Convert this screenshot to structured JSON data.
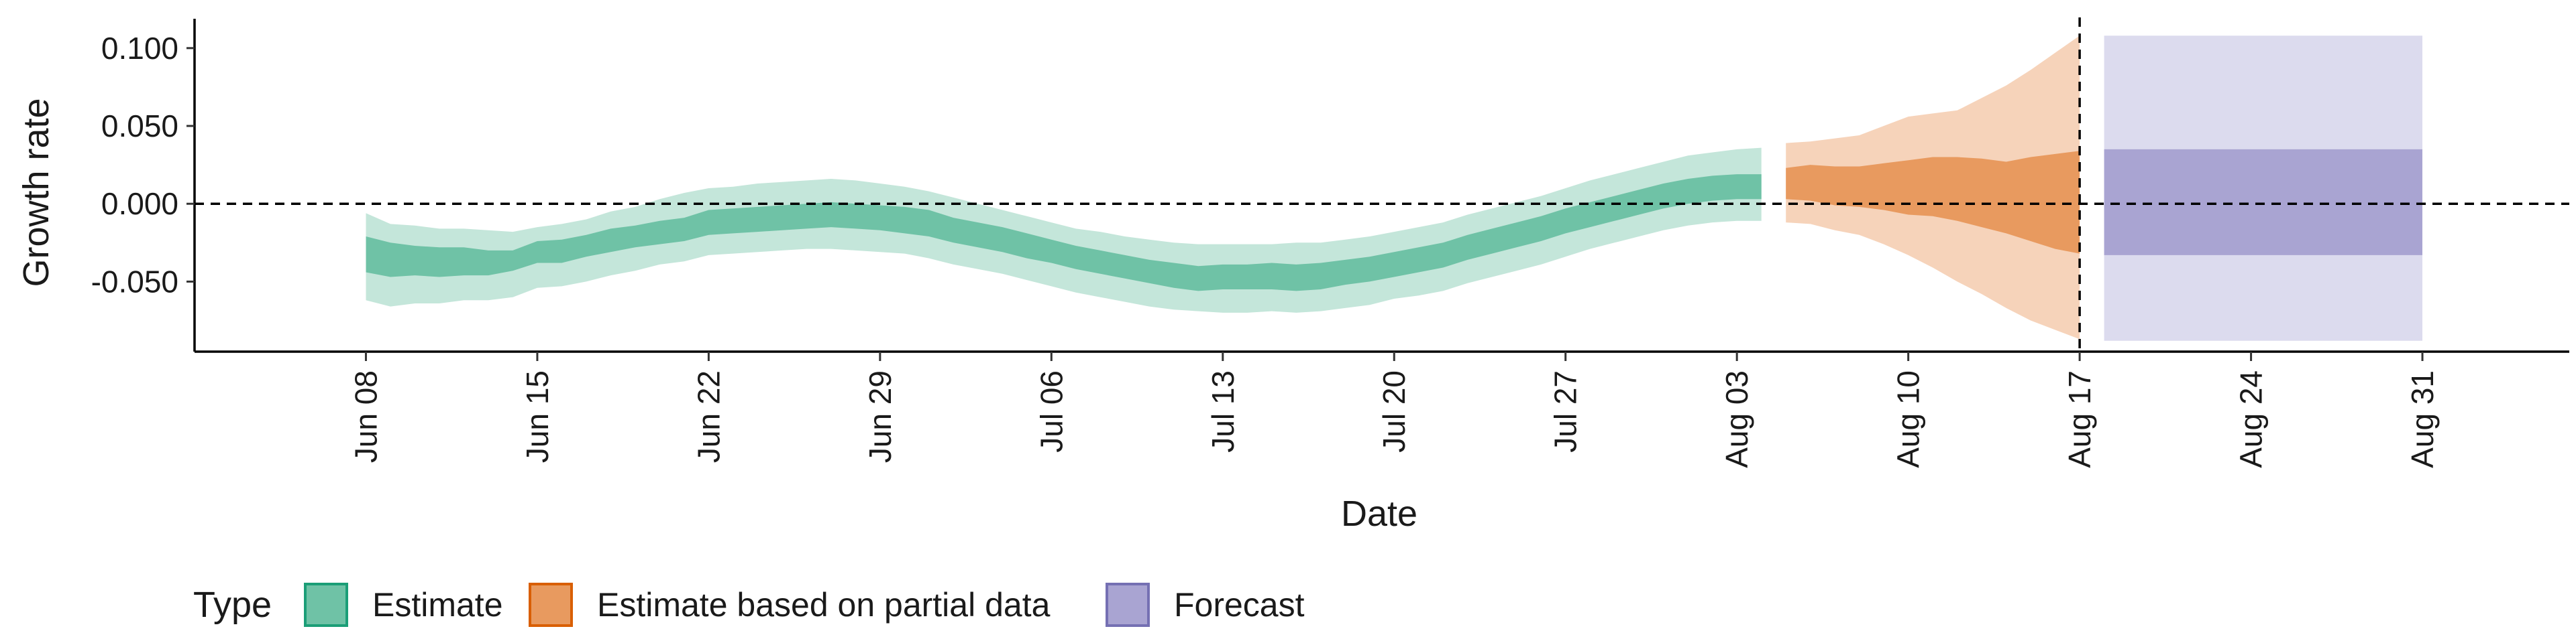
{
  "chart_data": {
    "type": "area",
    "xlabel": "Date",
    "ylabel": "Growth rate",
    "ylim": [
      -0.095,
      0.118
    ],
    "y_ticks": [
      -0.05,
      0.0,
      0.05,
      0.1
    ],
    "y_tick_labels": [
      "-0.050",
      "0.000",
      "0.050",
      "0.100"
    ],
    "x_range": [
      "2020-06-01",
      "2020-09-06"
    ],
    "x_ticks": [
      "2020-06-08",
      "2020-06-15",
      "2020-06-22",
      "2020-06-29",
      "2020-07-06",
      "2020-07-13",
      "2020-07-20",
      "2020-07-27",
      "2020-08-03",
      "2020-08-10",
      "2020-08-17",
      "2020-08-24",
      "2020-08-31"
    ],
    "x_tick_labels": [
      "Jun 08",
      "Jun 15",
      "Jun 22",
      "Jun 29",
      "Jul 06",
      "Jul 13",
      "Jul 20",
      "Jul 27",
      "Aug 03",
      "Aug 10",
      "Aug 17",
      "Aug 24",
      "Aug 31"
    ],
    "reference_lines": {
      "horizontal_y": 0.0,
      "vertical_date": "2020-08-17"
    },
    "grid": false,
    "legend": {
      "title": "Type",
      "position": "bottom-left",
      "entries": [
        {
          "label": "Estimate",
          "fill": "#6fc2a6",
          "border": "#1b9e77"
        },
        {
          "label": "Estimate based on partial data",
          "fill": "#e89a5f",
          "border": "#d95f02"
        },
        {
          "label": "Forecast",
          "fill": "#a9a4d2",
          "border": "#7570b3"
        }
      ]
    },
    "series": [
      {
        "name": "Estimate",
        "color_outer": "#c4e6da",
        "color_inner": "#6fc2a6",
        "points": [
          {
            "date": "2020-06-08",
            "outer": [
              -0.062,
              -0.006
            ],
            "inner": [
              -0.044,
              -0.021
            ]
          },
          {
            "date": "2020-06-09",
            "outer": [
              -0.066,
              -0.013
            ],
            "inner": [
              -0.047,
              -0.025
            ]
          },
          {
            "date": "2020-06-10",
            "outer": [
              -0.064,
              -0.014
            ],
            "inner": [
              -0.046,
              -0.027
            ]
          },
          {
            "date": "2020-06-11",
            "outer": [
              -0.064,
              -0.016
            ],
            "inner": [
              -0.047,
              -0.028
            ]
          },
          {
            "date": "2020-06-12",
            "outer": [
              -0.062,
              -0.016
            ],
            "inner": [
              -0.046,
              -0.028
            ]
          },
          {
            "date": "2020-06-13",
            "outer": [
              -0.062,
              -0.017
            ],
            "inner": [
              -0.046,
              -0.03
            ]
          },
          {
            "date": "2020-06-14",
            "outer": [
              -0.06,
              -0.018
            ],
            "inner": [
              -0.043,
              -0.03
            ]
          },
          {
            "date": "2020-06-15",
            "outer": [
              -0.054,
              -0.015
            ],
            "inner": [
              -0.038,
              -0.024
            ]
          },
          {
            "date": "2020-06-16",
            "outer": [
              -0.053,
              -0.013
            ],
            "inner": [
              -0.038,
              -0.023
            ]
          },
          {
            "date": "2020-06-17",
            "outer": [
              -0.05,
              -0.01
            ],
            "inner": [
              -0.034,
              -0.02
            ]
          },
          {
            "date": "2020-06-18",
            "outer": [
              -0.046,
              -0.005
            ],
            "inner": [
              -0.031,
              -0.016
            ]
          },
          {
            "date": "2020-06-19",
            "outer": [
              -0.043,
              -0.002
            ],
            "inner": [
              -0.028,
              -0.014
            ]
          },
          {
            "date": "2020-06-20",
            "outer": [
              -0.039,
              0.003
            ],
            "inner": [
              -0.026,
              -0.011
            ]
          },
          {
            "date": "2020-06-21",
            "outer": [
              -0.037,
              0.007
            ],
            "inner": [
              -0.024,
              -0.009
            ]
          },
          {
            "date": "2020-06-22",
            "outer": [
              -0.033,
              0.01
            ],
            "inner": [
              -0.02,
              -0.004
            ]
          },
          {
            "date": "2020-06-23",
            "outer": [
              -0.032,
              0.011
            ],
            "inner": [
              -0.019,
              -0.003
            ]
          },
          {
            "date": "2020-06-24",
            "outer": [
              -0.031,
              0.013
            ],
            "inner": [
              -0.018,
              -0.002
            ]
          },
          {
            "date": "2020-06-25",
            "outer": [
              -0.03,
              0.014
            ],
            "inner": [
              -0.017,
              -0.001
            ]
          },
          {
            "date": "2020-06-26",
            "outer": [
              -0.029,
              0.015
            ],
            "inner": [
              -0.016,
              0.0
            ]
          },
          {
            "date": "2020-06-27",
            "outer": [
              -0.029,
              0.016
            ],
            "inner": [
              -0.015,
              0.001
            ]
          },
          {
            "date": "2020-06-28",
            "outer": [
              -0.03,
              0.015
            ],
            "inner": [
              -0.016,
              0.0
            ]
          },
          {
            "date": "2020-06-29",
            "outer": [
              -0.031,
              0.013
            ],
            "inner": [
              -0.017,
              -0.001
            ]
          },
          {
            "date": "2020-06-30",
            "outer": [
              -0.032,
              0.011
            ],
            "inner": [
              -0.019,
              -0.002
            ]
          },
          {
            "date": "2020-07-01",
            "outer": [
              -0.035,
              0.008
            ],
            "inner": [
              -0.021,
              -0.004
            ]
          },
          {
            "date": "2020-07-02",
            "outer": [
              -0.039,
              0.004
            ],
            "inner": [
              -0.025,
              -0.009
            ]
          },
          {
            "date": "2020-07-03",
            "outer": [
              -0.042,
              0.0
            ],
            "inner": [
              -0.028,
              -0.012
            ]
          },
          {
            "date": "2020-07-04",
            "outer": [
              -0.045,
              -0.004
            ],
            "inner": [
              -0.031,
              -0.015
            ]
          },
          {
            "date": "2020-07-05",
            "outer": [
              -0.049,
              -0.008
            ],
            "inner": [
              -0.035,
              -0.019
            ]
          },
          {
            "date": "2020-07-06",
            "outer": [
              -0.053,
              -0.012
            ],
            "inner": [
              -0.038,
              -0.023
            ]
          },
          {
            "date": "2020-07-07",
            "outer": [
              -0.057,
              -0.016
            ],
            "inner": [
              -0.042,
              -0.027
            ]
          },
          {
            "date": "2020-07-08",
            "outer": [
              -0.06,
              -0.018
            ],
            "inner": [
              -0.045,
              -0.03
            ]
          },
          {
            "date": "2020-07-09",
            "outer": [
              -0.063,
              -0.021
            ],
            "inner": [
              -0.048,
              -0.033
            ]
          },
          {
            "date": "2020-07-10",
            "outer": [
              -0.066,
              -0.023
            ],
            "inner": [
              -0.051,
              -0.036
            ]
          },
          {
            "date": "2020-07-11",
            "outer": [
              -0.068,
              -0.025
            ],
            "inner": [
              -0.054,
              -0.038
            ]
          },
          {
            "date": "2020-07-12",
            "outer": [
              -0.069,
              -0.026
            ],
            "inner": [
              -0.056,
              -0.04
            ]
          },
          {
            "date": "2020-07-13",
            "outer": [
              -0.07,
              -0.026
            ],
            "inner": [
              -0.055,
              -0.039
            ]
          },
          {
            "date": "2020-07-14",
            "outer": [
              -0.07,
              -0.026
            ],
            "inner": [
              -0.055,
              -0.039
            ]
          },
          {
            "date": "2020-07-15",
            "outer": [
              -0.069,
              -0.026
            ],
            "inner": [
              -0.055,
              -0.038
            ]
          },
          {
            "date": "2020-07-16",
            "outer": [
              -0.07,
              -0.025
            ],
            "inner": [
              -0.056,
              -0.039
            ]
          },
          {
            "date": "2020-07-17",
            "outer": [
              -0.069,
              -0.025
            ],
            "inner": [
              -0.055,
              -0.038
            ]
          },
          {
            "date": "2020-07-18",
            "outer": [
              -0.067,
              -0.023
            ],
            "inner": [
              -0.052,
              -0.036
            ]
          },
          {
            "date": "2020-07-19",
            "outer": [
              -0.065,
              -0.021
            ],
            "inner": [
              -0.05,
              -0.034
            ]
          },
          {
            "date": "2020-07-20",
            "outer": [
              -0.061,
              -0.018
            ],
            "inner": [
              -0.047,
              -0.031
            ]
          },
          {
            "date": "2020-07-21",
            "outer": [
              -0.059,
              -0.015
            ],
            "inner": [
              -0.044,
              -0.028
            ]
          },
          {
            "date": "2020-07-22",
            "outer": [
              -0.056,
              -0.012
            ],
            "inner": [
              -0.041,
              -0.025
            ]
          },
          {
            "date": "2020-07-23",
            "outer": [
              -0.051,
              -0.007
            ],
            "inner": [
              -0.036,
              -0.02
            ]
          },
          {
            "date": "2020-07-24",
            "outer": [
              -0.047,
              -0.003
            ],
            "inner": [
              -0.032,
              -0.016
            ]
          },
          {
            "date": "2020-07-25",
            "outer": [
              -0.043,
              0.001
            ],
            "inner": [
              -0.028,
              -0.012
            ]
          },
          {
            "date": "2020-07-26",
            "outer": [
              -0.039,
              0.005
            ],
            "inner": [
              -0.024,
              -0.008
            ]
          },
          {
            "date": "2020-07-27",
            "outer": [
              -0.034,
              0.01
            ],
            "inner": [
              -0.019,
              -0.003
            ]
          },
          {
            "date": "2020-07-28",
            "outer": [
              -0.029,
              0.015
            ],
            "inner": [
              -0.015,
              0.001
            ]
          },
          {
            "date": "2020-07-29",
            "outer": [
              -0.025,
              0.019
            ],
            "inner": [
              -0.011,
              0.005
            ]
          },
          {
            "date": "2020-07-30",
            "outer": [
              -0.021,
              0.023
            ],
            "inner": [
              -0.007,
              0.009
            ]
          },
          {
            "date": "2020-07-31",
            "outer": [
              -0.017,
              0.027
            ],
            "inner": [
              -0.003,
              0.013
            ]
          },
          {
            "date": "2020-08-01",
            "outer": [
              -0.014,
              0.031
            ],
            "inner": [
              0.0,
              0.016
            ]
          },
          {
            "date": "2020-08-02",
            "outer": [
              -0.012,
              0.033
            ],
            "inner": [
              0.002,
              0.018
            ]
          },
          {
            "date": "2020-08-03",
            "outer": [
              -0.011,
              0.035
            ],
            "inner": [
              0.003,
              0.019
            ]
          },
          {
            "date": "2020-08-04",
            "outer": [
              -0.011,
              0.036
            ],
            "inner": [
              0.003,
              0.019
            ]
          }
        ]
      },
      {
        "name": "Estimate based on partial data",
        "color_outer": "#f6d3ba",
        "color_inner": "#e89a5f",
        "points": [
          {
            "date": "2020-08-05",
            "outer": [
              -0.012,
              0.039
            ],
            "inner": [
              0.003,
              0.023
            ]
          },
          {
            "date": "2020-08-06",
            "outer": [
              -0.013,
              0.04
            ],
            "inner": [
              0.002,
              0.025
            ]
          },
          {
            "date": "2020-08-07",
            "outer": [
              -0.017,
              0.042
            ],
            "inner": [
              -0.001,
              0.024
            ]
          },
          {
            "date": "2020-08-08",
            "outer": [
              -0.02,
              0.044
            ],
            "inner": [
              -0.002,
              0.024
            ]
          },
          {
            "date": "2020-08-09",
            "outer": [
              -0.026,
              0.05
            ],
            "inner": [
              -0.004,
              0.026
            ]
          },
          {
            "date": "2020-08-10",
            "outer": [
              -0.033,
              0.056
            ],
            "inner": [
              -0.007,
              0.028
            ]
          },
          {
            "date": "2020-08-11",
            "outer": [
              -0.041,
              0.058
            ],
            "inner": [
              -0.008,
              0.03
            ]
          },
          {
            "date": "2020-08-12",
            "outer": [
              -0.05,
              0.06
            ],
            "inner": [
              -0.011,
              0.03
            ]
          },
          {
            "date": "2020-08-13",
            "outer": [
              -0.058,
              0.068
            ],
            "inner": [
              -0.015,
              0.029
            ]
          },
          {
            "date": "2020-08-14",
            "outer": [
              -0.067,
              0.076
            ],
            "inner": [
              -0.019,
              0.027
            ]
          },
          {
            "date": "2020-08-15",
            "outer": [
              -0.075,
              0.086
            ],
            "inner": [
              -0.024,
              0.03
            ]
          },
          {
            "date": "2020-08-16",
            "outer": [
              -0.081,
              0.097
            ],
            "inner": [
              -0.029,
              0.032
            ]
          },
          {
            "date": "2020-08-17",
            "outer": [
              -0.087,
              0.108
            ],
            "inner": [
              -0.032,
              0.034
            ]
          }
        ]
      },
      {
        "name": "Forecast",
        "color_outer": "#dcdbee",
        "color_inner": "#a9a4d2",
        "points": [
          {
            "date": "2020-08-18",
            "outer": [
              -0.088,
              0.108
            ],
            "inner": [
              -0.033,
              0.035
            ]
          },
          {
            "date": "2020-08-31",
            "outer": [
              -0.088,
              0.108
            ],
            "inner": [
              -0.033,
              0.035
            ]
          }
        ]
      }
    ]
  }
}
